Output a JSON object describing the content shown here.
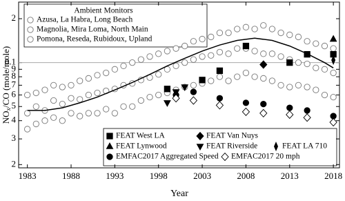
{
  "chart_data": {
    "type": "scatter",
    "x_label": "Year",
    "y_label": [
      "NO",
      "x",
      "/CO (mole/mole)"
    ],
    "log_y": true,
    "xlim": [
      1982,
      2018.7
    ],
    "xticks": [
      1983,
      1988,
      1993,
      1998,
      2003,
      2008,
      2013,
      2018
    ],
    "ylim": [
      0.019,
      0.26
    ],
    "yticks": [
      {
        "value": 0.2,
        "label": "2"
      },
      0.1,
      {
        "value": 0.09,
        "label": "9"
      },
      {
        "value": 0.08,
        "label": "8"
      },
      {
        "value": 0.07,
        "label": "7"
      },
      {
        "value": 0.06,
        "label": "6"
      },
      {
        "value": 0.05,
        "label": "5"
      },
      {
        "value": 0.04,
        "label": "4"
      },
      {
        "value": 0.03,
        "label": "3"
      },
      {
        "value": 0.02,
        "label": "2"
      }
    ],
    "reference_line": 0.1,
    "legend_title": "Ambient Monitors",
    "trend": {
      "x": [
        1983,
        1985,
        1987,
        1989,
        1991,
        1993,
        1995,
        1997,
        1999,
        2001,
        2003,
        2005,
        2007,
        2009,
        2011,
        2013,
        2015,
        2017,
        2018
      ],
      "values": [
        0.047,
        0.047,
        0.049,
        0.053,
        0.058,
        0.065,
        0.073,
        0.083,
        0.095,
        0.107,
        0.12,
        0.132,
        0.142,
        0.147,
        0.142,
        0.13,
        0.115,
        0.1,
        0.092
      ]
    },
    "series": [
      {
        "name": "Azusa, La Habra, Long Beach",
        "marker": "circle",
        "filled": false,
        "color": "#777777",
        "x": [
          1983,
          1984,
          1985,
          1986,
          1987,
          1988,
          1989,
          1990,
          1991,
          1992,
          1993,
          1994,
          1995,
          1996,
          1997,
          1998,
          1999,
          2000,
          2001,
          2002,
          2003,
          2004,
          2005,
          2006,
          2007,
          2008,
          2009,
          2010,
          2011,
          2012,
          2013,
          2014,
          2015,
          2016,
          2017,
          2018
        ],
        "values": [
          0.035,
          0.038,
          0.04,
          0.042,
          0.04,
          0.045,
          0.043,
          0.045,
          0.045,
          0.048,
          0.045,
          0.05,
          0.05,
          0.055,
          0.058,
          0.06,
          0.062,
          0.065,
          0.068,
          0.07,
          0.072,
          0.075,
          0.08,
          0.075,
          0.08,
          0.085,
          0.08,
          0.078,
          0.075,
          0.07,
          0.068,
          0.07,
          0.068,
          0.065,
          0.06,
          0.058
        ]
      },
      {
        "name": "Magnolia, Mira Loma, North Main",
        "marker": "circle",
        "filled": false,
        "color": "#777777",
        "x": [
          1983,
          1984,
          1985,
          1986,
          1987,
          1988,
          1989,
          1990,
          1991,
          1992,
          1993,
          1994,
          1995,
          1996,
          1997,
          1998,
          1999,
          2000,
          2001,
          2002,
          2003,
          2004,
          2005,
          2006,
          2007,
          2008,
          2009,
          2010,
          2011,
          2012,
          2013,
          2014,
          2015,
          2016,
          2017,
          2018
        ],
        "values": [
          0.045,
          0.05,
          0.047,
          0.055,
          0.052,
          0.057,
          0.056,
          0.06,
          0.062,
          0.064,
          0.066,
          0.07,
          0.072,
          0.076,
          0.079,
          0.083,
          0.09,
          0.095,
          0.1,
          0.105,
          0.11,
          0.112,
          0.118,
          0.115,
          0.125,
          0.125,
          0.12,
          0.115,
          0.115,
          0.11,
          0.105,
          0.1,
          0.098,
          0.092,
          0.09,
          0.085
        ]
      },
      {
        "name": "Pomona, Reseda, Rubidoux, Upland",
        "marker": "circle",
        "filled": false,
        "color": "#777777",
        "x": [
          1983,
          1984,
          1985,
          1986,
          1987,
          1988,
          1989,
          1990,
          1991,
          1992,
          1993,
          1994,
          1995,
          1996,
          1997,
          1998,
          1999,
          2000,
          2001,
          2002,
          2003,
          2004,
          2005,
          2006,
          2007,
          2008,
          2009,
          2010,
          2011,
          2012,
          2013,
          2014,
          2015,
          2016,
          2017,
          2018
        ],
        "values": [
          0.06,
          0.062,
          0.065,
          0.07,
          0.068,
          0.07,
          0.075,
          0.078,
          0.082,
          0.085,
          0.09,
          0.095,
          0.1,
          0.105,
          0.11,
          0.115,
          0.12,
          0.125,
          0.13,
          0.14,
          0.145,
          0.15,
          0.16,
          0.16,
          0.17,
          0.175,
          0.17,
          0.18,
          0.17,
          0.16,
          0.155,
          0.15,
          0.14,
          0.135,
          0.13,
          0.125
        ]
      },
      {
        "name": "FEAT West LA",
        "marker": "square",
        "filled": true,
        "color": "#000000",
        "x": [
          1999,
          2003,
          2005,
          2008,
          2013,
          2015,
          2018
        ],
        "values": [
          0.066,
          0.076,
          0.088,
          0.13,
          0.1,
          0.114,
          0.114
        ]
      },
      {
        "name": "FEAT Van Nuys",
        "marker": "diamond",
        "filled": true,
        "color": "#000000",
        "x": [
          2010
        ],
        "values": [
          0.097
        ]
      },
      {
        "name": "FEAT Lynwood",
        "marker": "triangle-up",
        "filled": true,
        "color": "#000000",
        "x": [
          2018
        ],
        "values": [
          0.145
        ]
      },
      {
        "name": "FEAT Riverside",
        "marker": "triangle-down",
        "filled": true,
        "color": "#000000",
        "x": [
          1999,
          2000,
          2001
        ],
        "values": [
          0.053,
          0.063,
          0.068
        ]
      },
      {
        "name": "FEAT LA 710",
        "marker": "thin-diamond",
        "filled": true,
        "color": "#000000",
        "x": [
          2018
        ],
        "values": [
          0.104
        ]
      },
      {
        "name": "EMFAC2017 Aggregated Speed",
        "marker": "circle",
        "filled": true,
        "color": "#000000",
        "x": [
          2000,
          2002,
          2005,
          2008,
          2010,
          2013,
          2015,
          2018
        ],
        "values": [
          0.06,
          0.063,
          0.057,
          0.053,
          0.052,
          0.049,
          0.047,
          0.043
        ]
      },
      {
        "name": "EMFAC2017 20 mph",
        "marker": "diamond",
        "filled": false,
        "color": "#000000",
        "x": [
          2000,
          2002,
          2005,
          2008,
          2010,
          2013,
          2015,
          2018
        ],
        "values": [
          0.057,
          0.055,
          0.051,
          0.046,
          0.045,
          0.044,
          0.042,
          0.039
        ]
      }
    ]
  }
}
